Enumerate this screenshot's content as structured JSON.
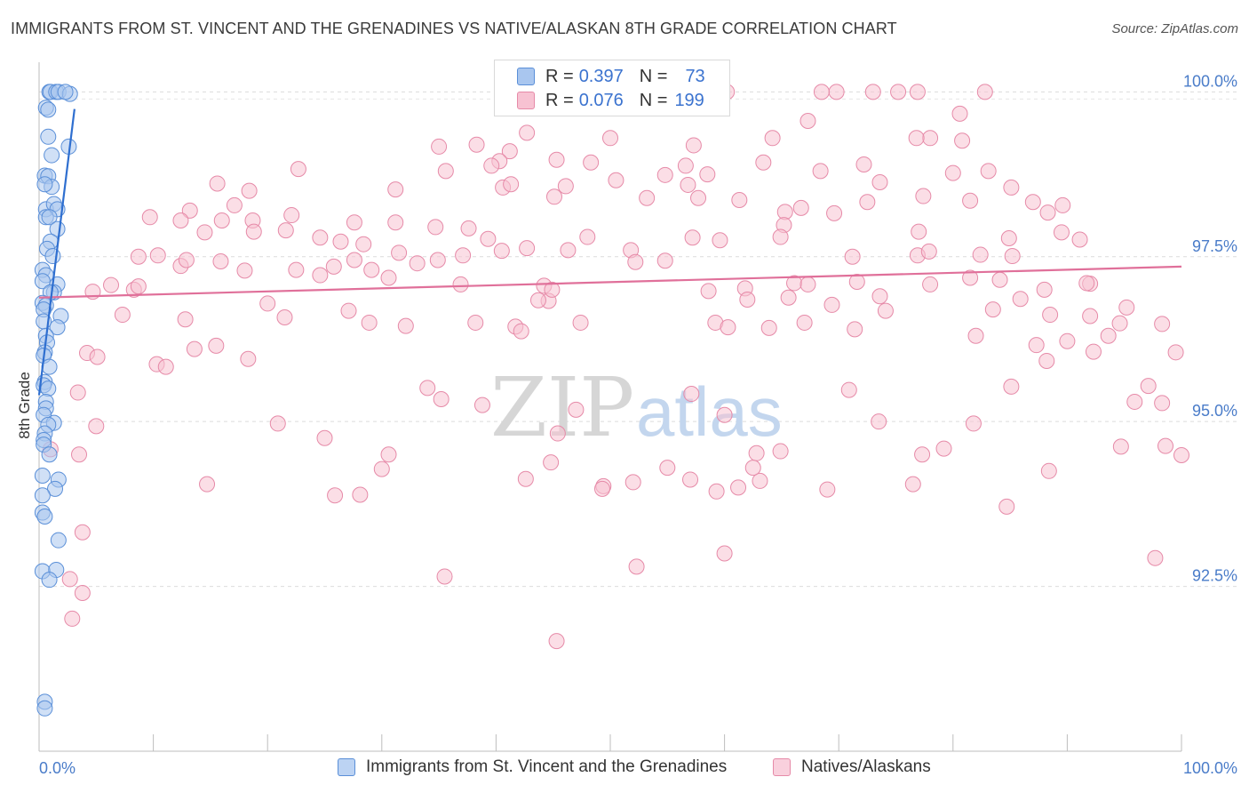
{
  "title": "IMMIGRANTS FROM ST. VINCENT AND THE GRENADINES VS NATIVE/ALASKAN 8TH GRADE CORRELATION CHART",
  "source": "Source: ZipAtlas.com",
  "watermark": {
    "zip": "ZIP",
    "atlas": "atlas"
  },
  "legend": {
    "rows": [
      {
        "r_label": "R =",
        "r_value": "0.397",
        "n_label": "N =",
        "n_value": "73"
      },
      {
        "r_label": "R =",
        "r_value": "0.076",
        "n_label": "N =",
        "n_value": "199"
      }
    ]
  },
  "colors": {
    "blue_fill": "#a9c6ef",
    "blue_stroke": "#5a8fd8",
    "blue_line": "#2f6fd0",
    "pink_fill": "#f7c2d2",
    "pink_stroke": "#e68aa8",
    "pink_line": "#e0709a",
    "axis_text": "#4a7cc9"
  },
  "chart_data": {
    "type": "scatter",
    "title": "IMMIGRANTS FROM ST. VINCENT AND THE GRENADINES VS NATIVE/ALASKAN 8TH GRADE CORRELATION CHART",
    "xlabel": "",
    "ylabel": "8th Grade",
    "xlim": [
      0,
      100
    ],
    "ylim": [
      90.0,
      100.45
    ],
    "x_tick_labels": [
      "0.0%",
      "100.0%"
    ],
    "y_ticks": [
      92.5,
      95.0,
      97.5,
      100.0
    ],
    "y_tick_labels": [
      "92.5%",
      "95.0%",
      "97.5%",
      "100.0%"
    ],
    "grid": "horizontal dashed",
    "legend_position": "top-center",
    "series": [
      {
        "name": "Immigrants from St. Vincent and the Grenadines",
        "color": "#a9c6ef",
        "trend": {
          "x": [
            0.0,
            3.1
          ],
          "y": [
            95.4,
            99.74
          ]
        },
        "points": [
          [
            0.9,
            100.0
          ],
          [
            1.0,
            100.0
          ],
          [
            1.5,
            100.0
          ],
          [
            1.7,
            100.0
          ],
          [
            2.7,
            99.97
          ],
          [
            2.3,
            100.0
          ],
          [
            0.6,
            99.76
          ],
          [
            0.8,
            99.73
          ],
          [
            0.8,
            99.32
          ],
          [
            1.1,
            99.04
          ],
          [
            2.6,
            99.17
          ],
          [
            0.5,
            98.73
          ],
          [
            0.8,
            98.72
          ],
          [
            1.1,
            98.56
          ],
          [
            0.5,
            98.6
          ],
          [
            0.6,
            98.22
          ],
          [
            1.3,
            98.3
          ],
          [
            1.6,
            98.22
          ],
          [
            0.6,
            98.1
          ],
          [
            0.9,
            98.1
          ],
          [
            1.6,
            97.92
          ],
          [
            1.0,
            97.73
          ],
          [
            0.7,
            97.62
          ],
          [
            1.2,
            97.51
          ],
          [
            0.3,
            97.3
          ],
          [
            0.6,
            97.22
          ],
          [
            0.3,
            97.13
          ],
          [
            1.6,
            97.08
          ],
          [
            1.3,
            96.96
          ],
          [
            1.0,
            96.96
          ],
          [
            0.3,
            96.8
          ],
          [
            0.6,
            96.76
          ],
          [
            0.4,
            96.7
          ],
          [
            1.9,
            96.6
          ],
          [
            0.4,
            96.52
          ],
          [
            1.6,
            96.43
          ],
          [
            0.6,
            96.3
          ],
          [
            0.7,
            96.2
          ],
          [
            0.5,
            96.05
          ],
          [
            0.4,
            96.0
          ],
          [
            0.9,
            95.83
          ],
          [
            0.5,
            95.6
          ],
          [
            0.4,
            95.55
          ],
          [
            0.8,
            95.5
          ],
          [
            0.6,
            95.3
          ],
          [
            0.6,
            95.2
          ],
          [
            0.4,
            95.1
          ],
          [
            1.3,
            94.98
          ],
          [
            0.8,
            94.95
          ],
          [
            0.5,
            94.82
          ],
          [
            0.4,
            94.72
          ],
          [
            0.4,
            94.65
          ],
          [
            0.9,
            94.5
          ],
          [
            0.3,
            94.18
          ],
          [
            1.7,
            94.12
          ],
          [
            1.4,
            93.98
          ],
          [
            0.3,
            93.88
          ],
          [
            0.3,
            93.62
          ],
          [
            0.5,
            93.56
          ],
          [
            1.7,
            93.2
          ],
          [
            0.3,
            92.73
          ],
          [
            1.5,
            92.75
          ],
          [
            0.9,
            92.6
          ],
          [
            0.5,
            90.75
          ],
          [
            0.5,
            90.65
          ]
        ]
      },
      {
        "name": "Natives/Alaskans",
        "color": "#f7c2d2",
        "trend": {
          "x": [
            0,
            100
          ],
          "y": [
            96.88,
            97.35
          ]
        },
        "points": [
          [
            69.8,
            100.0
          ],
          [
            73.0,
            100.0
          ],
          [
            75.2,
            100.0
          ],
          [
            68.5,
            100.0
          ],
          [
            76.9,
            100.0
          ],
          [
            82.8,
            100.0
          ],
          [
            60.2,
            100.0
          ],
          [
            46.1,
            99.8
          ],
          [
            80.6,
            99.67
          ],
          [
            67.3,
            99.56
          ],
          [
            42.7,
            99.38
          ],
          [
            50.0,
            99.3
          ],
          [
            78.0,
            99.3
          ],
          [
            76.8,
            99.3
          ],
          [
            64.2,
            99.3
          ],
          [
            80.8,
            99.26
          ],
          [
            35.0,
            99.17
          ],
          [
            38.3,
            99.2
          ],
          [
            57.3,
            99.19
          ],
          [
            41.2,
            99.1
          ],
          [
            40.3,
            98.95
          ],
          [
            39.6,
            98.88
          ],
          [
            45.3,
            98.97
          ],
          [
            48.3,
            98.93
          ],
          [
            56.6,
            98.88
          ],
          [
            63.4,
            98.93
          ],
          [
            72.2,
            98.9
          ],
          [
            68.4,
            98.8
          ],
          [
            22.7,
            98.83
          ],
          [
            35.6,
            98.8
          ],
          [
            54.8,
            98.74
          ],
          [
            80.0,
            98.77
          ],
          [
            83.1,
            98.8
          ],
          [
            58.5,
            98.75
          ],
          [
            50.5,
            98.66
          ],
          [
            73.6,
            98.63
          ],
          [
            40.6,
            98.55
          ],
          [
            41.3,
            98.6
          ],
          [
            46.1,
            98.57
          ],
          [
            56.8,
            98.59
          ],
          [
            85.1,
            98.55
          ],
          [
            15.6,
            98.61
          ],
          [
            18.4,
            98.5
          ],
          [
            31.2,
            98.52
          ],
          [
            45.1,
            98.41
          ],
          [
            53.2,
            98.39
          ],
          [
            57.7,
            98.39
          ],
          [
            61.3,
            98.36
          ],
          [
            72.5,
            98.33
          ],
          [
            87.0,
            98.33
          ],
          [
            77.4,
            98.42
          ],
          [
            81.5,
            98.35
          ],
          [
            89.6,
            98.28
          ],
          [
            88.3,
            98.17
          ],
          [
            66.7,
            98.24
          ],
          [
            65.3,
            98.18
          ],
          [
            69.6,
            98.16
          ],
          [
            17.1,
            98.28
          ],
          [
            13.2,
            98.2
          ],
          [
            9.7,
            98.1
          ],
          [
            12.4,
            98.05
          ],
          [
            16.0,
            98.05
          ],
          [
            18.7,
            98.05
          ],
          [
            22.1,
            98.13
          ],
          [
            27.6,
            98.02
          ],
          [
            31.2,
            98.02
          ],
          [
            34.7,
            97.95
          ],
          [
            37.6,
            97.93
          ],
          [
            39.3,
            97.77
          ],
          [
            48.0,
            97.8
          ],
          [
            57.2,
            97.79
          ],
          [
            59.6,
            97.75
          ],
          [
            65.2,
            97.98
          ],
          [
            64.9,
            97.8
          ],
          [
            77.0,
            97.88
          ],
          [
            84.9,
            97.78
          ],
          [
            89.5,
            97.87
          ],
          [
            91.1,
            97.76
          ],
          [
            14.5,
            97.87
          ],
          [
            18.8,
            97.88
          ],
          [
            21.6,
            97.9
          ],
          [
            24.6,
            97.79
          ],
          [
            26.4,
            97.73
          ],
          [
            27.6,
            97.45
          ],
          [
            28.4,
            97.69
          ],
          [
            31.5,
            97.56
          ],
          [
            34.9,
            97.45
          ],
          [
            37.1,
            97.52
          ],
          [
            40.5,
            97.59
          ],
          [
            42.7,
            97.63
          ],
          [
            46.3,
            97.6
          ],
          [
            51.8,
            97.6
          ],
          [
            52.2,
            97.42
          ],
          [
            54.8,
            97.44
          ],
          [
            71.2,
            97.5
          ],
          [
            76.9,
            97.52
          ],
          [
            77.9,
            97.58
          ],
          [
            82.4,
            97.53
          ],
          [
            85.2,
            97.51
          ],
          [
            8.7,
            97.5
          ],
          [
            10.4,
            97.52
          ],
          [
            12.4,
            97.36
          ],
          [
            12.9,
            97.45
          ],
          [
            15.9,
            97.43
          ],
          [
            18.0,
            97.29
          ],
          [
            22.5,
            97.3
          ],
          [
            24.6,
            97.22
          ],
          [
            25.8,
            97.35
          ],
          [
            29.1,
            97.3
          ],
          [
            30.6,
            97.18
          ],
          [
            33.1,
            97.4
          ],
          [
            36.9,
            97.08
          ],
          [
            44.2,
            97.06
          ],
          [
            44.6,
            96.83
          ],
          [
            58.6,
            96.98
          ],
          [
            61.8,
            97.02
          ],
          [
            66.1,
            97.1
          ],
          [
            67.3,
            97.08
          ],
          [
            71.6,
            97.12
          ],
          [
            78.0,
            97.08
          ],
          [
            81.5,
            97.18
          ],
          [
            84.1,
            97.15
          ],
          [
            88.0,
            97.0
          ],
          [
            92.0,
            97.09
          ],
          [
            91.7,
            97.1
          ],
          [
            6.3,
            97.07
          ],
          [
            8.3,
            97.0
          ],
          [
            8.7,
            97.05
          ],
          [
            20.0,
            96.79
          ],
          [
            27.1,
            96.68
          ],
          [
            43.7,
            96.84
          ],
          [
            44.9,
            97.0
          ],
          [
            62.0,
            96.85
          ],
          [
            65.6,
            96.88
          ],
          [
            69.4,
            96.77
          ],
          [
            73.6,
            96.9
          ],
          [
            74.1,
            96.68
          ],
          [
            83.5,
            96.7
          ],
          [
            85.9,
            96.86
          ],
          [
            88.5,
            96.62
          ],
          [
            92.0,
            96.6
          ],
          [
            95.2,
            96.73
          ],
          [
            98.3,
            96.48
          ],
          [
            4.7,
            96.97
          ],
          [
            7.3,
            96.62
          ],
          [
            12.8,
            96.55
          ],
          [
            21.5,
            96.58
          ],
          [
            28.9,
            96.5
          ],
          [
            32.1,
            96.45
          ],
          [
            38.2,
            96.5
          ],
          [
            41.7,
            96.44
          ],
          [
            42.2,
            96.37
          ],
          [
            47.4,
            96.5
          ],
          [
            59.2,
            96.5
          ],
          [
            60.3,
            96.43
          ],
          [
            63.9,
            96.42
          ],
          [
            67.0,
            96.5
          ],
          [
            71.4,
            96.4
          ],
          [
            82.0,
            96.3
          ],
          [
            87.3,
            96.16
          ],
          [
            90.0,
            96.22
          ],
          [
            92.3,
            96.06
          ],
          [
            93.6,
            96.3
          ],
          [
            94.6,
            96.49
          ],
          [
            99.5,
            96.05
          ],
          [
            4.2,
            96.04
          ],
          [
            5.1,
            95.98
          ],
          [
            10.3,
            95.87
          ],
          [
            11.1,
            95.83
          ],
          [
            13.6,
            96.1
          ],
          [
            15.5,
            96.15
          ],
          [
            18.3,
            95.95
          ],
          [
            34.0,
            95.51
          ],
          [
            35.2,
            95.34
          ],
          [
            38.8,
            95.25
          ],
          [
            47.0,
            95.18
          ],
          [
            57.1,
            95.42
          ],
          [
            60.0,
            95.1
          ],
          [
            70.9,
            95.48
          ],
          [
            73.5,
            95.0
          ],
          [
            77.3,
            94.5
          ],
          [
            81.8,
            94.97
          ],
          [
            85.1,
            95.53
          ],
          [
            88.2,
            95.92
          ],
          [
            95.9,
            95.3
          ],
          [
            97.1,
            95.54
          ],
          [
            98.3,
            95.28
          ],
          [
            100.0,
            94.49
          ],
          [
            3.4,
            95.44
          ],
          [
            5.0,
            94.93
          ],
          [
            14.7,
            94.05
          ],
          [
            20.9,
            94.97
          ],
          [
            25.0,
            94.75
          ],
          [
            28.1,
            93.89
          ],
          [
            30.0,
            94.28
          ],
          [
            30.6,
            94.5
          ],
          [
            42.6,
            94.13
          ],
          [
            44.8,
            94.38
          ],
          [
            45.4,
            94.82
          ],
          [
            49.4,
            94.02
          ],
          [
            52.0,
            94.08
          ],
          [
            55.0,
            94.3
          ],
          [
            57.0,
            94.12
          ],
          [
            59.3,
            93.94
          ],
          [
            61.2,
            94.0
          ],
          [
            62.8,
            94.52
          ],
          [
            63.1,
            94.1
          ],
          [
            64.9,
            94.55
          ],
          [
            69.0,
            93.97
          ],
          [
            76.5,
            94.05
          ],
          [
            79.2,
            94.59
          ],
          [
            84.7,
            93.71
          ],
          [
            94.7,
            94.62
          ],
          [
            98.6,
            94.63
          ],
          [
            3.5,
            94.5
          ],
          [
            1.0,
            94.58
          ],
          [
            3.8,
            93.32
          ],
          [
            25.9,
            93.88
          ],
          [
            49.3,
            93.98
          ],
          [
            52.3,
            92.8
          ],
          [
            60.0,
            93.0
          ],
          [
            62.5,
            94.3
          ],
          [
            88.4,
            94.25
          ],
          [
            97.7,
            92.93
          ],
          [
            2.7,
            92.61
          ],
          [
            2.9,
            92.01
          ],
          [
            3.8,
            92.4
          ],
          [
            35.5,
            92.65
          ],
          [
            45.3,
            91.67
          ]
        ]
      }
    ]
  },
  "bottom_legend": [
    {
      "label": "Immigrants from St. Vincent and the Grenadines"
    },
    {
      "label": "Natives/Alaskans"
    }
  ]
}
